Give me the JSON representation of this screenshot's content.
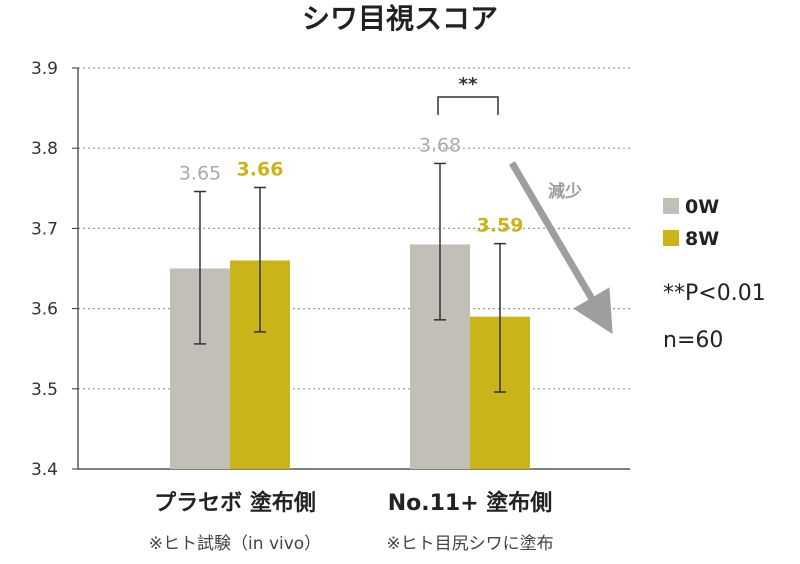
{
  "chart_data": {
    "type": "bar",
    "title": "シワ目視スコア",
    "categories": [
      "プラセボ 塗布側",
      "No.11+ 塗布側"
    ],
    "series": [
      {
        "name": "0W",
        "color": "#c2bfb8",
        "label_color": "#aaaaaa",
        "values": [
          3.65,
          3.68
        ],
        "labels": [
          "3.65",
          "3.68"
        ],
        "error_low": [
          3.556,
          3.586
        ],
        "error_high": [
          3.746,
          3.781
        ]
      },
      {
        "name": "8W",
        "color": "#c9b51a",
        "label_color": "#c9b51a",
        "values": [
          3.66,
          3.59
        ],
        "labels": [
          "3.66",
          "3.59"
        ],
        "error_low": [
          3.571,
          3.496
        ],
        "error_high": [
          3.751,
          3.681
        ]
      }
    ],
    "ylim": [
      3.4,
      3.9
    ],
    "yticks": [
      "3.4",
      "3.5",
      "3.6",
      "3.7",
      "3.8",
      "3.9"
    ],
    "grid": true,
    "legend_position": "right",
    "significance_label": "**",
    "arrow_label": "減少",
    "stats_note": "**P<0.01",
    "sample_note": "n=60",
    "footnote_left": "※ヒト試験（in vivo）",
    "footnote_right": "※ヒト目尻シワに塗布"
  }
}
